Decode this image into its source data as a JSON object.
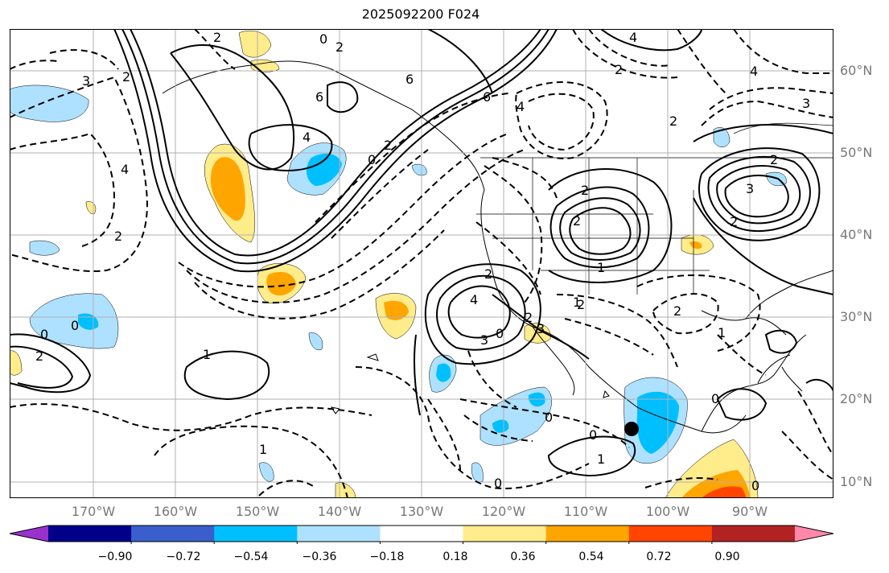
{
  "title": "2025092200 F024",
  "lat_labels": [
    "60°N",
    "50°N",
    "40°N",
    "30°N",
    "20°N",
    "10°N"
  ],
  "lon_labels": [
    "170°W",
    "160°W",
    "150°W",
    "140°W",
    "130°W",
    "120°W",
    "110°W",
    "100°W",
    "90°W"
  ],
  "colorbar": {
    "ticks": [
      "−0.90",
      "−0.72",
      "−0.54",
      "−0.36",
      "−0.18",
      "0.18",
      "0.36",
      "0.54",
      "0.72",
      "0.90"
    ],
    "colors": [
      "#9932cc",
      "#00008b",
      "#3a5fcd",
      "#00bfff",
      "#aee1ff",
      "#ffffff",
      "#ffec8b",
      "#ffa500",
      "#ff4500",
      "#b22222",
      "#ff88aa"
    ]
  },
  "contour_labels": [
    "2",
    "0",
    "2",
    "6",
    "4",
    "2",
    "4",
    "3",
    "2",
    "6",
    "4",
    "2",
    "6",
    "4",
    "2",
    "3",
    "4",
    "0",
    "2",
    "3",
    "2",
    "2",
    "2",
    "2",
    "1",
    "2",
    "4",
    "3",
    "0",
    "2",
    "3",
    "1",
    "2",
    "2",
    "1",
    "2",
    "0",
    "0",
    "1",
    "0",
    "0",
    "0",
    "1",
    "1",
    "0",
    "0"
  ],
  "marker": {
    "lon_lat": [
      -104,
      17
    ]
  }
}
